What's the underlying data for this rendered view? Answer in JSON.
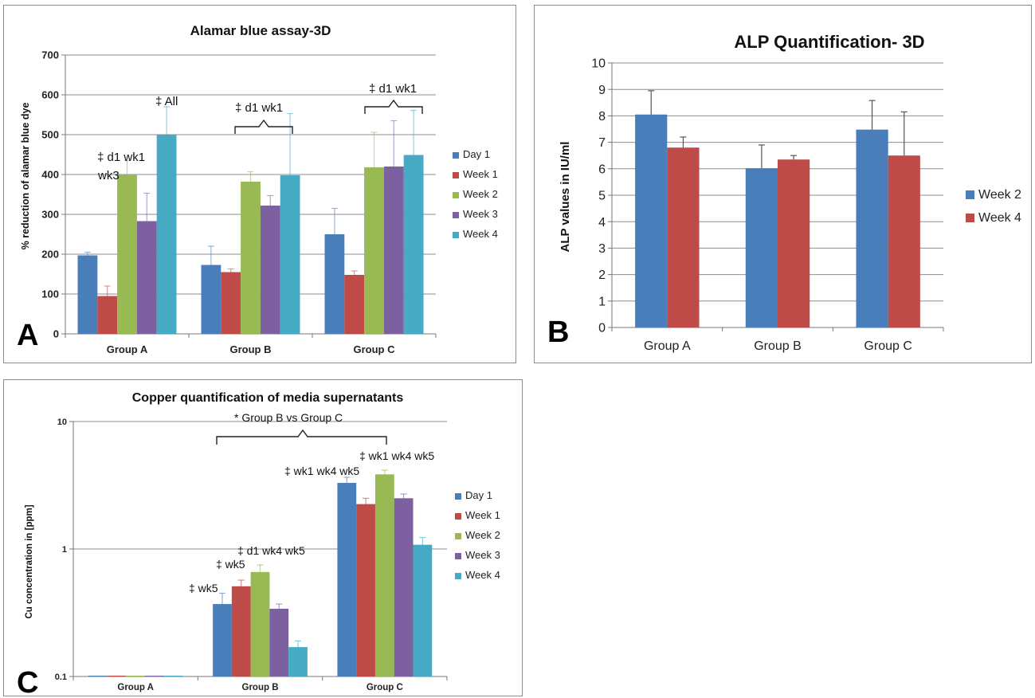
{
  "chart_data": [
    {
      "panel_letter": "A",
      "type": "bar",
      "title": "Alamar blue assay-3D",
      "xlabel": "",
      "ylabel": "% reduction of alamar blue dye",
      "ylim": [
        0,
        700
      ],
      "yticks": [
        "0",
        "100",
        "200",
        "300",
        "400",
        "500",
        "600",
        "700"
      ],
      "categories": [
        "Group A",
        "Group B",
        "Group C"
      ],
      "legend_position": "right",
      "grid": true,
      "series": [
        {
          "name": "Day 1",
          "color": "#4a7ebb",
          "values": [
            197,
            173,
            250
          ],
          "errors": [
            8,
            47,
            65
          ]
        },
        {
          "name": "Week 1",
          "color": "#be4b48",
          "values": [
            95,
            155,
            148
          ],
          "errors": [
            25,
            8,
            10
          ]
        },
        {
          "name": "Week 2",
          "color": "#98b954",
          "values": [
            400,
            382,
            418
          ],
          "errors": [
            35,
            25,
            88
          ]
        },
        {
          "name": "Week 3",
          "color": "#7d60a0",
          "values": [
            283,
            322,
            420
          ],
          "errors": [
            70,
            25,
            115
          ]
        },
        {
          "name": "Week 4",
          "color": "#46aac5",
          "values": [
            500,
            398,
            449
          ],
          "errors": [
            70,
            155,
            112
          ]
        }
      ],
      "annotations": [
        "‡ d1 wk1",
        "wk3",
        "‡ All",
        "‡ d1 wk1",
        "‡ d1 wk1"
      ]
    },
    {
      "panel_letter": "B",
      "type": "bar",
      "title": "ALP Quantification- 3D",
      "xlabel": "",
      "ylabel": "ALP values in IU/ml",
      "ylim": [
        0,
        10
      ],
      "yticks": [
        "0",
        "1",
        "2",
        "3",
        "4",
        "5",
        "6",
        "7",
        "8",
        "9",
        "10"
      ],
      "categories": [
        "Group A",
        "Group B",
        "Group C"
      ],
      "legend_position": "right",
      "grid": true,
      "series": [
        {
          "name": "Week 2",
          "color": "#4a7ebb",
          "values": [
            8.05,
            6.02,
            7.48
          ],
          "errors": [
            0.9,
            0.88,
            1.1
          ]
        },
        {
          "name": "Week 4",
          "color": "#be4b48",
          "values": [
            6.8,
            6.35,
            6.5
          ],
          "errors": [
            0.4,
            0.15,
            1.65
          ]
        }
      ]
    },
    {
      "panel_letter": "C",
      "type": "bar",
      "title": "Copper quantification of media supernatants",
      "xlabel": "",
      "ylabel": "Cu concentration in [ppm]",
      "yscale": "log",
      "ylim": [
        0.1,
        10
      ],
      "yticks": [
        "0.1",
        "1",
        "10"
      ],
      "categories": [
        "Group A",
        "Group B",
        "Group C"
      ],
      "legend_position": "right",
      "grid": true,
      "series": [
        {
          "name": "Day 1",
          "color": "#4a7ebb",
          "values": [
            0.1,
            0.37,
            3.3
          ],
          "errors": [
            0,
            0.08,
            0.35
          ]
        },
        {
          "name": "Week 1",
          "color": "#be4b48",
          "values": [
            0.1,
            0.51,
            2.25
          ],
          "errors": [
            0,
            0.06,
            0.25
          ]
        },
        {
          "name": "Week 2",
          "color": "#98b954",
          "values": [
            0.1,
            0.66,
            3.85
          ],
          "errors": [
            0,
            0.09,
            0.3
          ]
        },
        {
          "name": "Week 3",
          "color": "#7d60a0",
          "values": [
            0.1,
            0.34,
            2.5
          ],
          "errors": [
            0,
            0.03,
            0.2
          ]
        },
        {
          "name": "Week 4",
          "color": "#46aac5",
          "values": [
            0.1,
            0.17,
            1.08
          ],
          "errors": [
            0,
            0.02,
            0.15
          ]
        }
      ],
      "annotations": [
        "* Group B vs Group C",
        "‡  wk5",
        "‡  wk5",
        "‡  d1 wk4 wk5",
        "‡  wk1  wk4 wk5",
        "‡  wk1  wk4  wk5"
      ]
    }
  ]
}
